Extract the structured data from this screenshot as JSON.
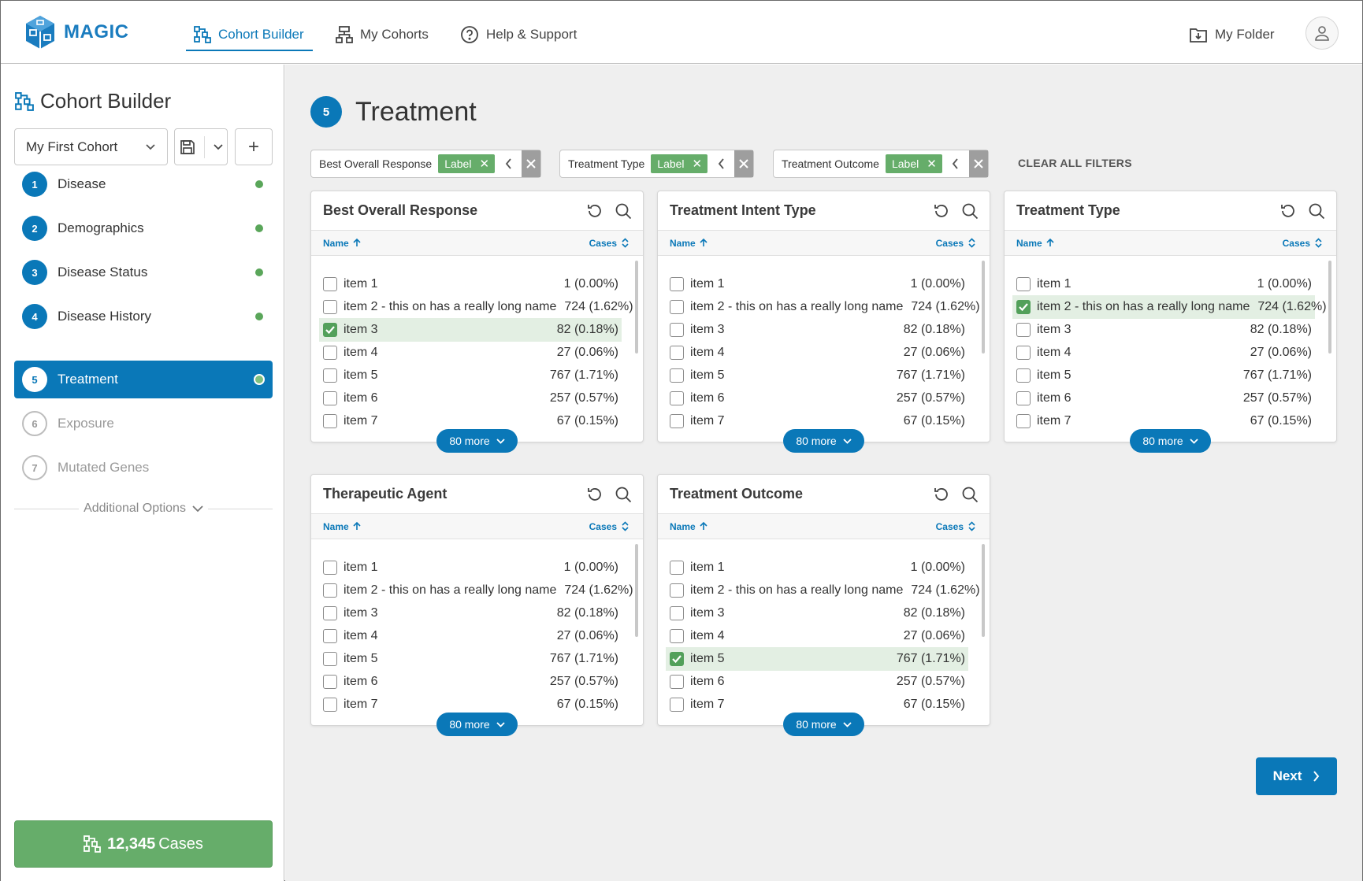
{
  "app": {
    "name": "MAGIC"
  },
  "nav": {
    "items": [
      {
        "label": "Cohort Builder",
        "icon": "cohort-builder-icon"
      },
      {
        "label": "My Cohorts",
        "icon": "hierarchy-icon"
      },
      {
        "label": "Help & Support",
        "icon": "help-icon"
      }
    ],
    "my_folder": "My Folder"
  },
  "sidebar": {
    "title": "Cohort Builder",
    "cohort_name": "My First Cohort",
    "add_label": "+",
    "steps": [
      {
        "num": "1",
        "label": "Disease"
      },
      {
        "num": "2",
        "label": "Demographics"
      },
      {
        "num": "3",
        "label": "Disease Status"
      },
      {
        "num": "4",
        "label": "Disease History"
      },
      {
        "num": "5",
        "label": "Treatment"
      },
      {
        "num": "6",
        "label": "Exposure"
      },
      {
        "num": "7",
        "label": "Mutated Genes"
      }
    ],
    "additional_options": "Additional Options",
    "cases_count": "12,345",
    "cases_label": "Cases"
  },
  "main": {
    "step_num": "5",
    "title": "Treatment",
    "filters": [
      {
        "label": "Best Overall Response",
        "tag": "Label"
      },
      {
        "label": "Treatment Type",
        "tag": "Label"
      },
      {
        "label": "Treatment Outcome",
        "tag": "Label"
      }
    ],
    "clear_all": "CLEAR ALL FILTERS",
    "col_name": "Name",
    "col_cases": "Cases",
    "more_label": "80 more",
    "next_label": "Next",
    "cards": [
      {
        "title": "Best Overall Response",
        "selected": 2,
        "rows": [
          {
            "name": "item 1",
            "value": "1 (0.00%)"
          },
          {
            "name": "item 2 - this on has a really long name",
            "value": "724 (1.62%)"
          },
          {
            "name": "item 3",
            "value": "82 (0.18%)"
          },
          {
            "name": "item 4",
            "value": "27 (0.06%)"
          },
          {
            "name": "item 5",
            "value": "767 (1.71%)"
          },
          {
            "name": "item 6",
            "value": "257 (0.57%)"
          },
          {
            "name": "item 7",
            "value": "67 (0.15%)"
          }
        ]
      },
      {
        "title": "Treatment Intent Type",
        "selected": -1,
        "rows": [
          {
            "name": "item 1",
            "value": "1 (0.00%)"
          },
          {
            "name": "item 2 - this on has a really long name",
            "value": "724 (1.62%)"
          },
          {
            "name": "item 3",
            "value": "82 (0.18%)"
          },
          {
            "name": "item 4",
            "value": "27 (0.06%)"
          },
          {
            "name": "item 5",
            "value": "767 (1.71%)"
          },
          {
            "name": "item 6",
            "value": "257 (0.57%)"
          },
          {
            "name": "item 7",
            "value": "67 (0.15%)"
          }
        ]
      },
      {
        "title": "Treatment Type",
        "selected": 1,
        "rows": [
          {
            "name": "item 1",
            "value": "1 (0.00%)"
          },
          {
            "name": "item 2 - this on has a really long name",
            "value": "724 (1.62%)"
          },
          {
            "name": "item 3",
            "value": "82 (0.18%)"
          },
          {
            "name": "item 4",
            "value": "27 (0.06%)"
          },
          {
            "name": "item 5",
            "value": "767 (1.71%)"
          },
          {
            "name": "item 6",
            "value": "257 (0.57%)"
          },
          {
            "name": "item 7",
            "value": "67 (0.15%)"
          }
        ]
      },
      {
        "title": "Therapeutic Agent",
        "selected": -1,
        "rows": [
          {
            "name": "item 1",
            "value": "1 (0.00%)"
          },
          {
            "name": "item 2 - this on has a really long name",
            "value": "724 (1.62%)"
          },
          {
            "name": "item 3",
            "value": "82 (0.18%)"
          },
          {
            "name": "item 4",
            "value": "27 (0.06%)"
          },
          {
            "name": "item 5",
            "value": "767 (1.71%)"
          },
          {
            "name": "item 6",
            "value": "257 (0.57%)"
          },
          {
            "name": "item 7",
            "value": "67 (0.15%)"
          }
        ]
      },
      {
        "title": "Treatment Outcome",
        "selected": 4,
        "rows": [
          {
            "name": "item 1",
            "value": "1 (0.00%)"
          },
          {
            "name": "item 2 - this on has a really long name",
            "value": "724 (1.62%)"
          },
          {
            "name": "item 3",
            "value": "82 (0.18%)"
          },
          {
            "name": "item 4",
            "value": "27 (0.06%)"
          },
          {
            "name": "item 5",
            "value": "767 (1.71%)"
          },
          {
            "name": "item 6",
            "value": "257 (0.57%)"
          },
          {
            "name": "item 7",
            "value": "67 (0.15%)"
          }
        ]
      }
    ]
  },
  "colors": {
    "primary": "#0a78b8",
    "success": "#66ad6a",
    "selected_row": "#e3efe3"
  }
}
